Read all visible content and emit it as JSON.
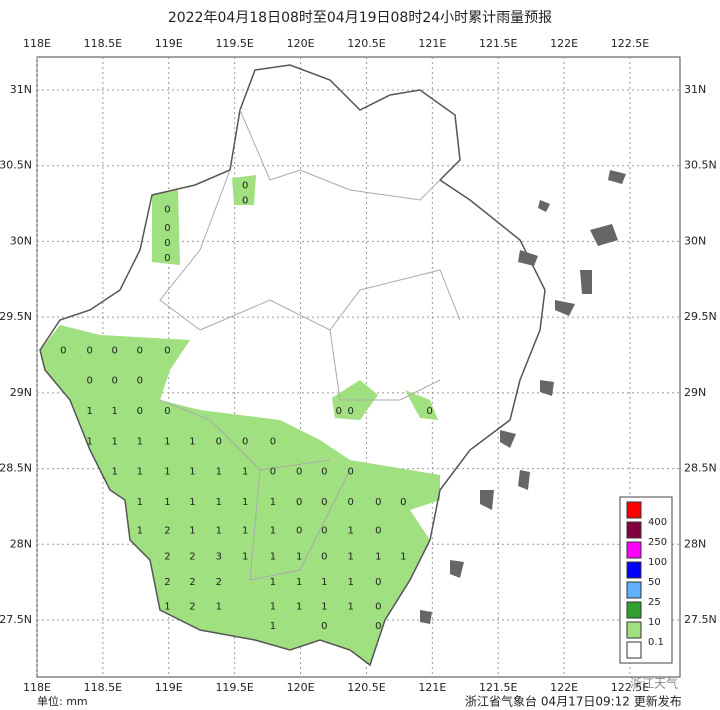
{
  "title": "2022年04月18日08时至04月19日08时24小时累计雨量预报",
  "xticks": [
    {
      "value": 118,
      "label": "118E"
    },
    {
      "value": 118.5,
      "label": "118.5E"
    },
    {
      "value": 119,
      "label": "119E"
    },
    {
      "value": 119.5,
      "label": "119.5E"
    },
    {
      "value": 120,
      "label": "120E"
    },
    {
      "value": 120.5,
      "label": "120.5E"
    },
    {
      "value": 121,
      "label": "121E"
    },
    {
      "value": 121.5,
      "label": "121.5E"
    },
    {
      "value": 122,
      "label": "122E"
    },
    {
      "value": 122.5,
      "label": "122.5E"
    }
  ],
  "yticks": [
    {
      "value": 31,
      "label": "31N"
    },
    {
      "value": 30.5,
      "label": "30.5N"
    },
    {
      "value": 30,
      "label": "30N"
    },
    {
      "value": 29.5,
      "label": "29.5N"
    },
    {
      "value": 29,
      "label": "29N"
    },
    {
      "value": 28.5,
      "label": "28.5N"
    },
    {
      "value": 28,
      "label": "28N"
    },
    {
      "value": 27.5,
      "label": "27.5N"
    }
  ],
  "legend": {
    "levels": [
      400,
      250,
      100,
      50,
      25,
      10,
      0.1
    ],
    "colors": [
      "#ff0000",
      "#800040",
      "#ff00ff",
      "#0000ff",
      "#60b0ff",
      "#30a030",
      "#a0e080",
      "#ffffff"
    ]
  },
  "unit": "单位: mm",
  "footer": "浙江省气象台 04月17日09:12 更新发布",
  "watermark": "浙江天气",
  "stations": [
    {
      "lon": 118.99,
      "lat": 30.21,
      "value": 0
    },
    {
      "lon": 118.99,
      "lat": 30.09,
      "value": 0
    },
    {
      "lon": 118.99,
      "lat": 29.99,
      "value": 0
    },
    {
      "lon": 118.99,
      "lat": 29.89,
      "value": 0
    },
    {
      "lon": 119.58,
      "lat": 30.37,
      "value": 0
    },
    {
      "lon": 119.58,
      "lat": 30.27,
      "value": 0
    },
    {
      "lon": 118.2,
      "lat": 29.28,
      "value": 0
    },
    {
      "lon": 118.4,
      "lat": 29.28,
      "value": 0
    },
    {
      "lon": 118.59,
      "lat": 29.28,
      "value": 0
    },
    {
      "lon": 118.78,
      "lat": 29.28,
      "value": 0
    },
    {
      "lon": 118.99,
      "lat": 29.28,
      "value": 0
    },
    {
      "lon": 118.4,
      "lat": 29.08,
      "value": 0
    },
    {
      "lon": 118.59,
      "lat": 29.08,
      "value": 0
    },
    {
      "lon": 118.78,
      "lat": 29.08,
      "value": 0
    },
    {
      "lon": 118.4,
      "lat": 28.88,
      "value": 1
    },
    {
      "lon": 118.59,
      "lat": 28.88,
      "value": 1
    },
    {
      "lon": 118.78,
      "lat": 28.88,
      "value": 0
    },
    {
      "lon": 118.99,
      "lat": 28.88,
      "value": 0
    },
    {
      "lon": 120.29,
      "lat": 28.88,
      "value": 0
    },
    {
      "lon": 120.38,
      "lat": 28.88,
      "value": 0
    },
    {
      "lon": 120.98,
      "lat": 28.88,
      "value": 0
    },
    {
      "lon": 118.4,
      "lat": 28.68,
      "value": 1
    },
    {
      "lon": 118.59,
      "lat": 28.68,
      "value": 1
    },
    {
      "lon": 118.78,
      "lat": 28.68,
      "value": 1
    },
    {
      "lon": 118.99,
      "lat": 28.68,
      "value": 1
    },
    {
      "lon": 119.18,
      "lat": 28.68,
      "value": 1
    },
    {
      "lon": 119.38,
      "lat": 28.68,
      "value": 0
    },
    {
      "lon": 119.58,
      "lat": 28.68,
      "value": 0
    },
    {
      "lon": 119.79,
      "lat": 28.68,
      "value": 0
    },
    {
      "lon": 118.59,
      "lat": 28.48,
      "value": 1
    },
    {
      "lon": 118.78,
      "lat": 28.48,
      "value": 1
    },
    {
      "lon": 118.99,
      "lat": 28.48,
      "value": 1
    },
    {
      "lon": 119.18,
      "lat": 28.48,
      "value": 1
    },
    {
      "lon": 119.38,
      "lat": 28.48,
      "value": 1
    },
    {
      "lon": 119.58,
      "lat": 28.48,
      "value": 1
    },
    {
      "lon": 119.79,
      "lat": 28.48,
      "value": 0
    },
    {
      "lon": 119.99,
      "lat": 28.48,
      "value": 0
    },
    {
      "lon": 120.18,
      "lat": 28.48,
      "value": 0
    },
    {
      "lon": 120.38,
      "lat": 28.48,
      "value": 0
    },
    {
      "lon": 118.78,
      "lat": 28.28,
      "value": 1
    },
    {
      "lon": 118.99,
      "lat": 28.28,
      "value": 1
    },
    {
      "lon": 119.18,
      "lat": 28.28,
      "value": 1
    },
    {
      "lon": 119.38,
      "lat": 28.28,
      "value": 1
    },
    {
      "lon": 119.58,
      "lat": 28.28,
      "value": 1
    },
    {
      "lon": 119.79,
      "lat": 28.28,
      "value": 1
    },
    {
      "lon": 119.99,
      "lat": 28.28,
      "value": 0
    },
    {
      "lon": 120.18,
      "lat": 28.28,
      "value": 0
    },
    {
      "lon": 120.38,
      "lat": 28.28,
      "value": 0
    },
    {
      "lon": 120.59,
      "lat": 28.28,
      "value": 0
    },
    {
      "lon": 120.78,
      "lat": 28.28,
      "value": 0
    },
    {
      "lon": 118.78,
      "lat": 28.09,
      "value": 1
    },
    {
      "lon": 118.99,
      "lat": 28.09,
      "value": 2
    },
    {
      "lon": 119.18,
      "lat": 28.09,
      "value": 1
    },
    {
      "lon": 119.38,
      "lat": 28.09,
      "value": 1
    },
    {
      "lon": 119.58,
      "lat": 28.09,
      "value": 1
    },
    {
      "lon": 119.79,
      "lat": 28.09,
      "value": 1
    },
    {
      "lon": 119.99,
      "lat": 28.09,
      "value": 0
    },
    {
      "lon": 120.18,
      "lat": 28.09,
      "value": 0
    },
    {
      "lon": 120.38,
      "lat": 28.09,
      "value": 1
    },
    {
      "lon": 120.59,
      "lat": 28.09,
      "value": 0
    },
    {
      "lon": 118.99,
      "lat": 27.92,
      "value": 2
    },
    {
      "lon": 119.18,
      "lat": 27.92,
      "value": 2
    },
    {
      "lon": 119.38,
      "lat": 27.92,
      "value": 3
    },
    {
      "lon": 119.58,
      "lat": 27.92,
      "value": 1
    },
    {
      "lon": 119.79,
      "lat": 27.92,
      "value": 1
    },
    {
      "lon": 119.99,
      "lat": 27.92,
      "value": 1
    },
    {
      "lon": 120.18,
      "lat": 27.92,
      "value": 0
    },
    {
      "lon": 120.38,
      "lat": 27.92,
      "value": 1
    },
    {
      "lon": 120.59,
      "lat": 27.92,
      "value": 1
    },
    {
      "lon": 120.78,
      "lat": 27.92,
      "value": 1
    },
    {
      "lon": 118.99,
      "lat": 27.75,
      "value": 2
    },
    {
      "lon": 119.18,
      "lat": 27.75,
      "value": 2
    },
    {
      "lon": 119.38,
      "lat": 27.75,
      "value": 2
    },
    {
      "lon": 119.79,
      "lat": 27.75,
      "value": 1
    },
    {
      "lon": 119.99,
      "lat": 27.75,
      "value": 1
    },
    {
      "lon": 120.18,
      "lat": 27.75,
      "value": 1
    },
    {
      "lon": 120.38,
      "lat": 27.75,
      "value": 1
    },
    {
      "lon": 120.59,
      "lat": 27.75,
      "value": 0
    },
    {
      "lon": 118.99,
      "lat": 27.59,
      "value": 1
    },
    {
      "lon": 119.18,
      "lat": 27.59,
      "value": 2
    },
    {
      "lon": 119.38,
      "lat": 27.59,
      "value": 1
    },
    {
      "lon": 119.79,
      "lat": 27.59,
      "value": 1
    },
    {
      "lon": 119.99,
      "lat": 27.59,
      "value": 1
    },
    {
      "lon": 120.18,
      "lat": 27.59,
      "value": 1
    },
    {
      "lon": 120.38,
      "lat": 27.59,
      "value": 1
    },
    {
      "lon": 120.59,
      "lat": 27.59,
      "value": 0
    },
    {
      "lon": 119.79,
      "lat": 27.46,
      "value": 1
    },
    {
      "lon": 120.18,
      "lat": 27.46,
      "value": 0
    },
    {
      "lon": 120.59,
      "lat": 27.46,
      "value": 0
    }
  ]
}
